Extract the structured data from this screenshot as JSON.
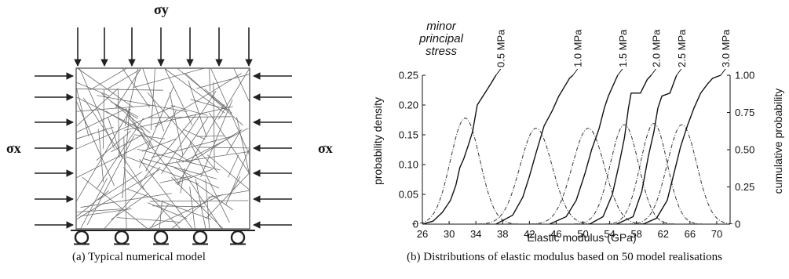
{
  "left_panel": {
    "sigma_y_label": "σy",
    "sigma_x_left_label": "σx",
    "sigma_x_right_label": "σx",
    "caption": "(a) Typical numerical model"
  },
  "right_panel": {
    "caption": "(b) Distributions of elastic modulus based on 50 model realisations"
  },
  "chart_data": {
    "type": "line",
    "xlabel": "Elastic modulus (GPa)",
    "ylabel": "probability density",
    "y2label": "cumulative probability",
    "xlim": [
      26,
      72
    ],
    "ylim": [
      0,
      0.25
    ],
    "y2lim": [
      0,
      1
    ],
    "x_ticks": [
      26,
      30,
      34,
      38,
      42,
      46,
      50,
      54,
      58,
      62,
      66,
      70
    ],
    "y_ticks": [
      "0",
      "0.05",
      "0.10",
      "0.15",
      "0.20",
      "0.25"
    ],
    "y2_ticks": [
      "0",
      "0.25",
      "0.50",
      "0.75",
      "1.00"
    ],
    "legend_title": [
      "minor",
      "principal",
      "stress"
    ],
    "series": [
      {
        "name": "0.5 MPa",
        "pdf": {
          "mean": 32.4,
          "sd": 2.2,
          "peak": 0.178
        },
        "cdf": [
          [
            26.0,
            0.0
          ],
          [
            27.6,
            0.02
          ],
          [
            29.0,
            0.08
          ],
          [
            30.2,
            0.16
          ],
          [
            31.0,
            0.26
          ],
          [
            31.6,
            0.38
          ],
          [
            32.2,
            0.44
          ],
          [
            32.8,
            0.52
          ],
          [
            33.5,
            0.62
          ],
          [
            34.2,
            0.8
          ],
          [
            35.2,
            0.87
          ],
          [
            36.2,
            0.94
          ],
          [
            37.0,
            1.0
          ]
        ]
      },
      {
        "name": "1.0 MPa",
        "pdf": {
          "mean": 43.0,
          "sd": 2.4,
          "peak": 0.161
        },
        "cdf": [
          [
            37.0,
            0.0
          ],
          [
            39.5,
            0.06
          ],
          [
            41.0,
            0.18
          ],
          [
            42.0,
            0.32
          ],
          [
            43.0,
            0.48
          ],
          [
            44.2,
            0.66
          ],
          [
            45.4,
            0.76
          ],
          [
            46.4,
            0.86
          ],
          [
            47.2,
            0.92
          ],
          [
            48.0,
            0.98
          ],
          [
            48.5,
            1.0
          ]
        ]
      },
      {
        "name": "1.5 MPa",
        "pdf": {
          "mean": 50.8,
          "sd": 2.4,
          "peak": 0.161
        },
        "cdf": [
          [
            45.0,
            0.0
          ],
          [
            47.5,
            0.05
          ],
          [
            49.0,
            0.16
          ],
          [
            50.3,
            0.34
          ],
          [
            51.3,
            0.5
          ],
          [
            52.4,
            0.64
          ],
          [
            53.2,
            0.78
          ],
          [
            53.8,
            0.86
          ],
          [
            54.6,
            0.94
          ],
          [
            55.2,
            1.0
          ]
        ]
      },
      {
        "name": "2.0 MPa",
        "pdf": {
          "mean": 56.2,
          "sd": 2.1,
          "peak": 0.167
        },
        "cdf": [
          [
            51.0,
            0.0
          ],
          [
            53.0,
            0.05
          ],
          [
            54.4,
            0.2
          ],
          [
            55.4,
            0.4
          ],
          [
            56.2,
            0.58
          ],
          [
            56.8,
            0.78
          ],
          [
            57.2,
            0.88
          ],
          [
            58.6,
            0.88
          ],
          [
            59.6,
            0.97
          ],
          [
            60.2,
            1.0
          ]
        ]
      },
      {
        "name": "2.5 MPa",
        "pdf": {
          "mean": 60.6,
          "sd": 2.0,
          "peak": 0.169
        },
        "cdf": [
          [
            55.0,
            0.0
          ],
          [
            57.5,
            0.05
          ],
          [
            58.8,
            0.22
          ],
          [
            59.8,
            0.46
          ],
          [
            60.6,
            0.62
          ],
          [
            61.2,
            0.78
          ],
          [
            61.8,
            0.86
          ],
          [
            63.0,
            0.88
          ],
          [
            64.0,
            1.0
          ]
        ]
      },
      {
        "name": "3.0 MPa",
        "pdf": {
          "mean": 64.8,
          "sd": 2.2,
          "peak": 0.167
        },
        "cdf": [
          [
            59.0,
            0.0
          ],
          [
            61.0,
            0.04
          ],
          [
            62.6,
            0.16
          ],
          [
            63.6,
            0.34
          ],
          [
            64.6,
            0.52
          ],
          [
            65.6,
            0.66
          ],
          [
            66.6,
            0.78
          ],
          [
            67.6,
            0.88
          ],
          [
            68.6,
            0.94
          ],
          [
            69.4,
            0.98
          ],
          [
            70.6,
            1.0
          ]
        ]
      }
    ]
  }
}
